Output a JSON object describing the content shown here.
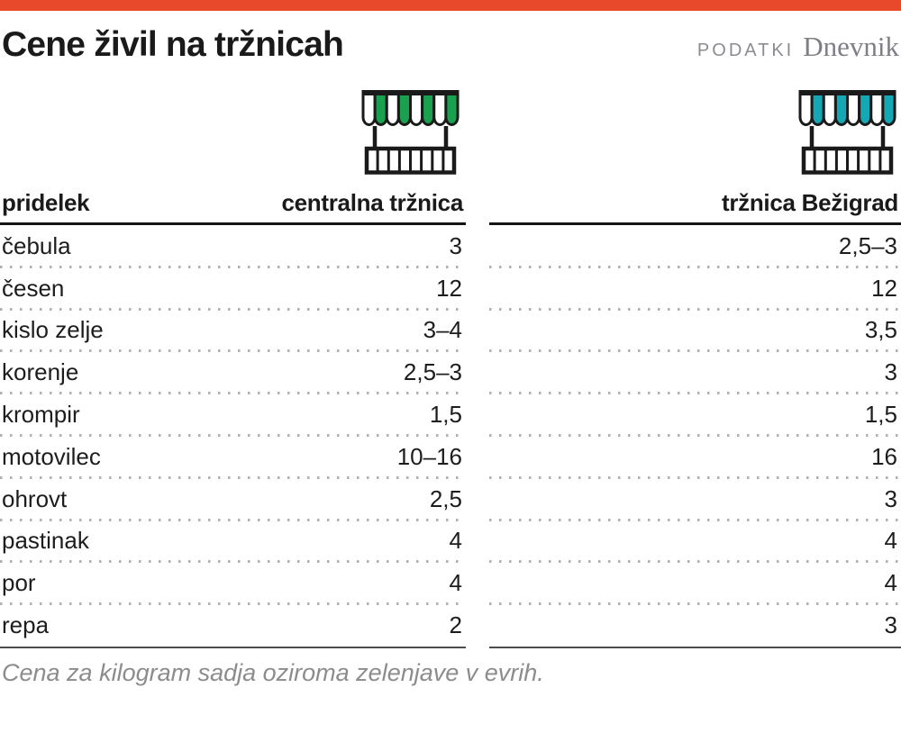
{
  "page": {
    "topbar_color": "#e8492a",
    "title": "Cene živil na tržnicah",
    "brand_podatki": "PODATKI",
    "brand_dnevnik": "Dnevnik",
    "note": "Cena za kilogram sadja oziroma zelenjave v evrih."
  },
  "chart_data": {
    "type": "table",
    "title": "Cene živil na tržnicah",
    "note": "Cena za kilogram sadja oziroma zelenjave v evrih.",
    "row_header_label": "pridelek",
    "products": [
      "čebula",
      "česen",
      "kislo zelje",
      "korenje",
      "krompir",
      "motovilec",
      "ohrovt",
      "pastinak",
      "por",
      "repa"
    ],
    "series": [
      {
        "name": "centralna tržnica",
        "icon": "market-stall-icon",
        "color": "#19a14f",
        "show_labels": true,
        "values": [
          "3",
          "12",
          "3–4",
          "2,5–3",
          "1,5",
          "10–16",
          "2,5",
          "4",
          "4",
          "2"
        ]
      },
      {
        "name": "tržnica Bežigrad",
        "icon": "market-stall-icon",
        "color": "#16a7b5",
        "show_labels": false,
        "values": [
          "2,5–3",
          "12",
          "3,5",
          "3",
          "1,5",
          "16",
          "3",
          "4",
          "4",
          "3"
        ]
      }
    ]
  }
}
